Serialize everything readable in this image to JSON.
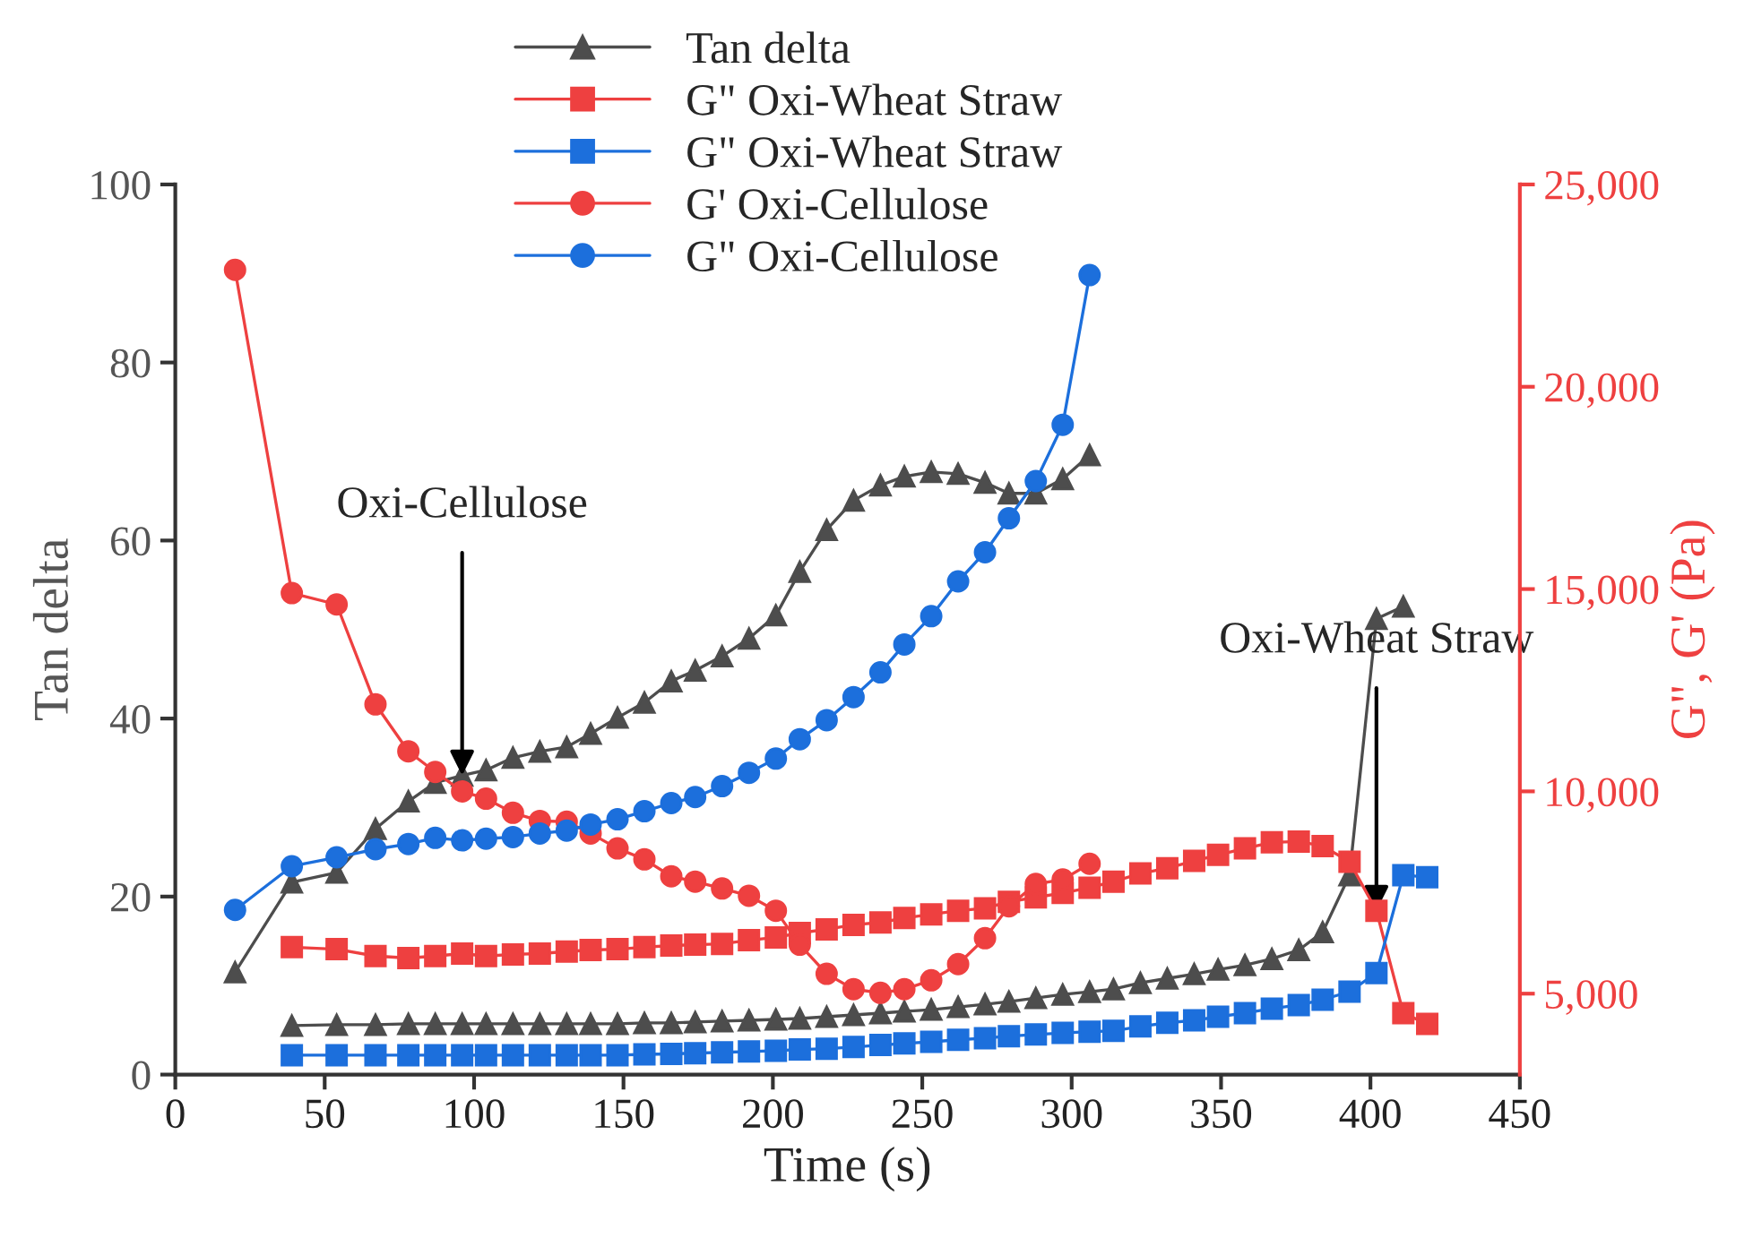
{
  "chart_data": {
    "type": "line",
    "xlabel": "Time (s)",
    "ylabel": "Tan delta",
    "y2label": "G\", G' (Pa)",
    "xlim": [
      0,
      450
    ],
    "xticks": [
      0,
      50,
      100,
      150,
      200,
      250,
      300,
      350,
      400,
      450
    ],
    "ylim": [
      0,
      100
    ],
    "yticks": [
      0,
      20,
      40,
      60,
      80,
      100
    ],
    "y2lim": [
      3000,
      25000
    ],
    "y2ticks": [
      {
        "value": 5000,
        "label": "5,000"
      },
      {
        "value": 10000,
        "label": "10,000"
      },
      {
        "value": 15000,
        "label": "15,000"
      },
      {
        "value": 20000,
        "label": "20,000"
      },
      {
        "value": 25000,
        "label": "25,000"
      }
    ],
    "grid": false,
    "legend": "top",
    "annotations": [
      {
        "text": "Oxi-Cellulose",
        "x": 96,
        "y": 33.6
      },
      {
        "text": "Oxi-Wheat Straw",
        "x": 402,
        "y": 18.4
      }
    ],
    "series": [
      {
        "name": "Tan delta",
        "color": "#4d4d4d",
        "marker": "triangle",
        "axis": "y",
        "x": [
          20,
          39,
          54,
          67,
          78,
          87,
          96,
          104,
          113,
          122,
          131,
          139,
          148,
          157,
          166,
          174,
          183,
          192,
          201,
          209,
          218,
          227,
          236,
          244,
          253,
          262,
          271,
          279,
          288,
          297,
          306
        ],
        "values": [
          11.5,
          21.6,
          22.7,
          27.6,
          30.7,
          32.8,
          33.6,
          34.2,
          35.6,
          36.3,
          36.8,
          38.3,
          40.1,
          41.8,
          44.2,
          45.4,
          47,
          49,
          51.6,
          56.5,
          61.2,
          64.5,
          66.2,
          67.2,
          67.7,
          67.5,
          66.5,
          65.3,
          65.3,
          66.9,
          69.6
        ]
      },
      {
        "name": "G\" Oxi-Wheat Straw",
        "color": "#ee4040",
        "marker": "square",
        "axis": "y2",
        "x": [
          39,
          54,
          67,
          78,
          87,
          96,
          104,
          113,
          122,
          131,
          139,
          148,
          157,
          166,
          174,
          183,
          192,
          201,
          209,
          218,
          227,
          236,
          244,
          253,
          262,
          271,
          279,
          288,
          297,
          306,
          314,
          323,
          332,
          341,
          349,
          358,
          367,
          376,
          384,
          393,
          402,
          411,
          419
        ],
        "values": [
          6150,
          6100,
          5930,
          5880,
          5930,
          5990,
          5930,
          5970,
          5990,
          6040,
          6080,
          6100,
          6150,
          6190,
          6210,
          6230,
          6320,
          6390,
          6500,
          6590,
          6700,
          6760,
          6870,
          6960,
          7050,
          7110,
          7270,
          7380,
          7490,
          7620,
          7770,
          7970,
          8100,
          8280,
          8430,
          8590,
          8740,
          8760,
          8650,
          8260,
          7050,
          4520,
          4250
        ]
      },
      {
        "name": "G\" Oxi-Wheat Straw",
        "color": "#1c6fdc",
        "marker": "square",
        "axis": "y2",
        "x": [
          39,
          54,
          67,
          78,
          87,
          96,
          104,
          113,
          122,
          131,
          139,
          148,
          157,
          166,
          174,
          183,
          192,
          201,
          209,
          218,
          227,
          236,
          244,
          253,
          262,
          271,
          279,
          288,
          297,
          306,
          314,
          323,
          332,
          341,
          349,
          358,
          367,
          376,
          384,
          393,
          402,
          411,
          419
        ],
        "values": [
          3480,
          3480,
          3480,
          3480,
          3480,
          3480,
          3480,
          3480,
          3480,
          3480,
          3480,
          3480,
          3500,
          3510,
          3530,
          3550,
          3570,
          3590,
          3620,
          3640,
          3680,
          3730,
          3770,
          3810,
          3860,
          3900,
          3950,
          3990,
          4030,
          4060,
          4080,
          4190,
          4280,
          4340,
          4430,
          4520,
          4630,
          4720,
          4850,
          5050,
          5510,
          7930,
          7880
        ]
      },
      {
        "name": "G' Oxi-Cellulose",
        "color": "#ee4040",
        "marker": "circle",
        "axis": "y2",
        "x": [
          20,
          39,
          54,
          67,
          78,
          87,
          96,
          104,
          113,
          122,
          131,
          139,
          148,
          157,
          166,
          174,
          183,
          192,
          201,
          209,
          218,
          227,
          236,
          244,
          253,
          262,
          271,
          279,
          288,
          297,
          306
        ],
        "values": [
          22890,
          14900,
          14620,
          12150,
          10990,
          10480,
          10000,
          9820,
          9470,
          9270,
          9250,
          8960,
          8590,
          8320,
          7900,
          7770,
          7600,
          7420,
          7050,
          6210,
          5490,
          5110,
          5020,
          5110,
          5330,
          5730,
          6370,
          7160,
          7710,
          7820,
          8210
        ]
      },
      {
        "name": "G\" Oxi-Cellulose",
        "color": "#1c6fdc",
        "marker": "circle",
        "axis": "y2",
        "x": [
          20,
          39,
          54,
          67,
          78,
          87,
          96,
          104,
          113,
          122,
          131,
          139,
          148,
          157,
          166,
          174,
          183,
          192,
          201,
          209,
          218,
          227,
          236,
          244,
          253,
          262,
          271,
          279,
          288,
          297,
          306
        ],
        "values": [
          7070,
          8150,
          8370,
          8570,
          8700,
          8850,
          8790,
          8830,
          8870,
          8960,
          9030,
          9180,
          9310,
          9510,
          9710,
          9860,
          10130,
          10460,
          10810,
          11290,
          11760,
          12330,
          12940,
          13630,
          14330,
          15190,
          15910,
          16750,
          17670,
          19060,
          22760
        ]
      },
      {
        "color": "#4d4d4d",
        "marker": "triangle",
        "axis": "y",
        "x": [
          39,
          54,
          67,
          78,
          87,
          96,
          104,
          113,
          122,
          131,
          139,
          148,
          157,
          166,
          174,
          183,
          192,
          201,
          209,
          218,
          227,
          236,
          244,
          253,
          262,
          271,
          279,
          288,
          297,
          306,
          314,
          323,
          332,
          341,
          349,
          358,
          367,
          376,
          384,
          393,
          402,
          411
        ],
        "values": [
          5.5,
          5.6,
          5.6,
          5.7,
          5.7,
          5.7,
          5.7,
          5.7,
          5.7,
          5.7,
          5.7,
          5.7,
          5.8,
          5.8,
          5.9,
          6,
          6.1,
          6.2,
          6.3,
          6.5,
          6.7,
          6.9,
          7.1,
          7.3,
          7.6,
          7.9,
          8.2,
          8.6,
          9,
          9.3,
          9.6,
          10.3,
          10.8,
          11.3,
          11.8,
          12.3,
          13,
          14,
          16,
          22.4,
          51.2,
          52.6
        ]
      }
    ]
  }
}
